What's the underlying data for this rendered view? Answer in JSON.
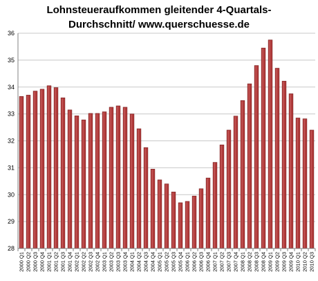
{
  "chart_data": {
    "type": "bar",
    "title_line1": "Lohnsteueraufkommen  gleitender  4-Quartals-",
    "title_line2": "Durchschnitt/  www.querschuesse.de",
    "xlabel": "",
    "ylabel": "",
    "ylim": [
      28,
      36
    ],
    "yticks": [
      28,
      29,
      30,
      31,
      32,
      33,
      34,
      35,
      36
    ],
    "grid": true,
    "legend": "none",
    "bar_color": "#b03a3a",
    "categories": [
      "2000 Q1",
      "2000 Q2",
      "2000 Q3",
      "2000 Q4",
      "2001 Q1",
      "2001 Q2",
      "2001 Q3",
      "2001 Q4",
      "2002 Q1",
      "2002 Q2",
      "2002 Q3",
      "2002 Q4",
      "2003 Q1",
      "2003 Q2",
      "2003 Q3",
      "2003 Q4",
      "2004 Q1",
      "2004 Q2",
      "2004 Q3",
      "2004 Q4",
      "2005 Q1",
      "2005 Q2",
      "2005 Q3",
      "2005 Q4",
      "2006 Q1",
      "2006 Q2",
      "2006 Q3",
      "2006 Q4",
      "2007 Q1",
      "2007 Q2",
      "2007 Q3",
      "2007 Q4",
      "2008 Q1",
      "2008 Q2",
      "2008 Q3",
      "2008 Q4",
      "2009 Q1",
      "2009 Q2",
      "2009 Q3",
      "2009 Q4",
      "2010 Q1",
      "2010 Q2",
      "2010 Q3"
    ],
    "values": [
      33.65,
      33.7,
      33.85,
      33.92,
      34.05,
      33.98,
      33.6,
      33.15,
      32.93,
      32.78,
      33.02,
      33.02,
      33.08,
      33.25,
      33.3,
      33.25,
      33.0,
      32.45,
      31.75,
      30.95,
      30.55,
      30.4,
      30.1,
      29.7,
      29.75,
      29.95,
      30.22,
      30.62,
      31.2,
      31.85,
      32.4,
      32.92,
      33.5,
      34.12,
      34.8,
      35.45,
      35.75,
      34.7,
      34.22,
      33.75,
      32.85,
      32.82,
      32.4
    ]
  }
}
